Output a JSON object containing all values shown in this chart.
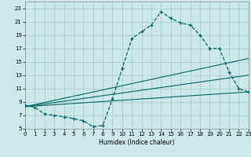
{
  "bg_color": "#cce8e8",
  "grid_color": "#aacfcf",
  "line_color": "#006666",
  "xlabel": "Humidex (Indice chaleur)",
  "xlim": [
    0,
    23
  ],
  "ylim": [
    5,
    24
  ],
  "xticks": [
    0,
    1,
    2,
    3,
    4,
    5,
    6,
    7,
    8,
    9,
    10,
    11,
    12,
    13,
    14,
    15,
    16,
    17,
    18,
    19,
    20,
    21,
    22,
    23
  ],
  "yticks": [
    5,
    7,
    9,
    11,
    13,
    15,
    17,
    19,
    21,
    23
  ],
  "markers_x": [
    0,
    1,
    2,
    3,
    4,
    5,
    6,
    7,
    8,
    9,
    10,
    11,
    12,
    13,
    14,
    15,
    16,
    17,
    18,
    19,
    20,
    21,
    22,
    23
  ],
  "markers_y": [
    8.5,
    8.2,
    7.2,
    7.0,
    6.8,
    6.5,
    6.2,
    5.3,
    5.5,
    9.5,
    14.0,
    18.5,
    19.5,
    20.5,
    22.5,
    21.5,
    20.8,
    20.5,
    19.0,
    17.0,
    17.0,
    13.5,
    11.0,
    10.5
  ],
  "line1_x": [
    0,
    23
  ],
  "line1_y": [
    8.3,
    15.5
  ],
  "line2_x": [
    0,
    23
  ],
  "line2_y": [
    8.3,
    13.0
  ],
  "line3_x": [
    0,
    23
  ],
  "line3_y": [
    8.3,
    10.5
  ]
}
